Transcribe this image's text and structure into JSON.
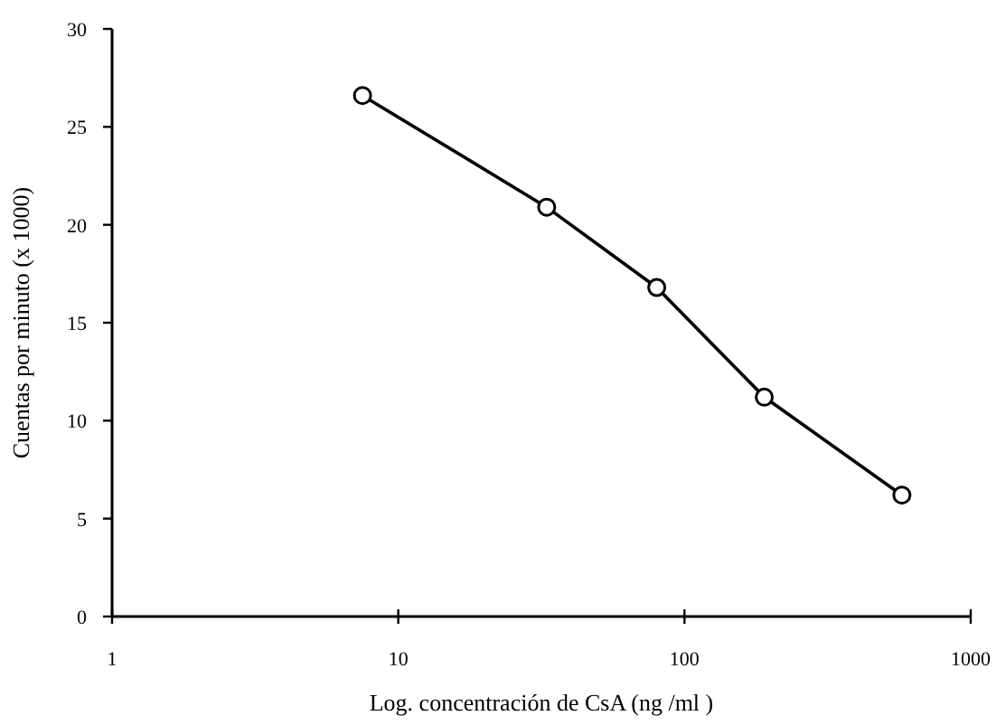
{
  "chart_data": {
    "type": "line",
    "xlabel": "Log. concentración de CsA (ng /ml )",
    "ylabel": "Cuentas por minuto (x 1000)",
    "log": "x",
    "x": [
      7.5,
      33,
      80,
      190,
      575
    ],
    "series": [
      {
        "color": "#000000",
        "values": [
          26.6,
          20.9,
          16.8,
          11.2,
          6.2
        ]
      }
    ],
    "xlim": [
      1,
      1000
    ],
    "xticks": [
      1,
      10,
      100,
      1000
    ],
    "ylim": [
      0,
      30
    ],
    "yticks": [
      0,
      5,
      10,
      15,
      20,
      25,
      30
    ],
    "marker": "circle",
    "line_style": "solid"
  }
}
